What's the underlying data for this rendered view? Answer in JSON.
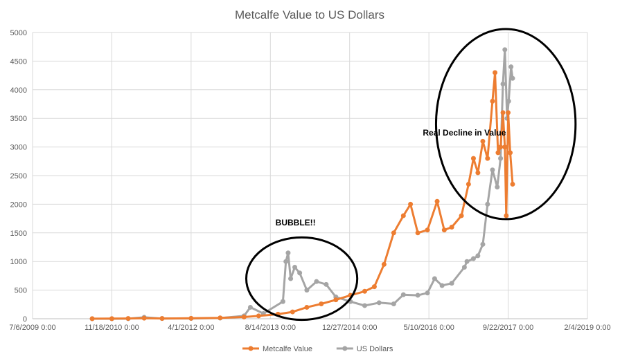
{
  "chart_data": {
    "type": "line",
    "title": "Metcalfe Value to US Dollars",
    "xlabel": "",
    "ylabel": "",
    "grid": true,
    "legend_placement": "bottom",
    "ylim": [
      0,
      5000
    ],
    "y_ticks": [
      0,
      500,
      1000,
      1500,
      2000,
      2500,
      3000,
      3500,
      4000,
      4500,
      5000
    ],
    "xlim": [
      "2009-07-06",
      "2019-02-04"
    ],
    "x_ticks": [
      {
        "date": "2009-07-06",
        "label": "7/6/2009 0:00"
      },
      {
        "date": "2010-11-18",
        "label": "11/18/2010 0:00"
      },
      {
        "date": "2012-04-01",
        "label": "4/1/2012 0:00"
      },
      {
        "date": "2013-08-14",
        "label": "8/14/2013 0:00"
      },
      {
        "date": "2014-12-27",
        "label": "12/27/2014 0:00"
      },
      {
        "date": "2016-05-10",
        "label": "5/10/2016 0:00"
      },
      {
        "date": "2017-09-22",
        "label": "9/22/2017 0:00"
      },
      {
        "date": "2019-02-04",
        "label": "2/4/2019 0:00"
      }
    ],
    "series": [
      {
        "name": "Metcalfe Value",
        "color": "#ed7d31",
        "points": [
          [
            "2010-07-17",
            1
          ],
          [
            "2010-11-18",
            2
          ],
          [
            "2011-03-01",
            5
          ],
          [
            "2011-06-10",
            10
          ],
          [
            "2011-10-01",
            5
          ],
          [
            "2012-04-01",
            8
          ],
          [
            "2012-10-01",
            15
          ],
          [
            "2013-03-01",
            30
          ],
          [
            "2013-06-01",
            50
          ],
          [
            "2013-10-01",
            80
          ],
          [
            "2014-01-01",
            120
          ],
          [
            "2014-04-01",
            200
          ],
          [
            "2014-07-01",
            260
          ],
          [
            "2014-10-01",
            330
          ],
          [
            "2015-01-01",
            410
          ],
          [
            "2015-04-01",
            480
          ],
          [
            "2015-06-01",
            560
          ],
          [
            "2015-08-01",
            950
          ],
          [
            "2015-10-01",
            1500
          ],
          [
            "2015-12-01",
            1800
          ],
          [
            "2016-01-15",
            2000
          ],
          [
            "2016-03-01",
            1500
          ],
          [
            "2016-05-01",
            1550
          ],
          [
            "2016-07-01",
            2050
          ],
          [
            "2016-08-15",
            1550
          ],
          [
            "2016-10-01",
            1600
          ],
          [
            "2016-12-01",
            1800
          ],
          [
            "2017-01-15",
            2350
          ],
          [
            "2017-02-15",
            2800
          ],
          [
            "2017-03-15",
            2550
          ],
          [
            "2017-04-15",
            3100
          ],
          [
            "2017-05-15",
            2800
          ],
          [
            "2017-06-15",
            3800
          ],
          [
            "2017-07-01",
            4300
          ],
          [
            "2017-07-20",
            2900
          ],
          [
            "2017-08-05",
            3000
          ],
          [
            "2017-08-20",
            3600
          ],
          [
            "2017-09-01",
            3000
          ],
          [
            "2017-09-10",
            1800
          ],
          [
            "2017-09-22",
            3600
          ],
          [
            "2017-10-05",
            2900
          ],
          [
            "2017-10-20",
            2350
          ]
        ]
      },
      {
        "name": "US Dollars",
        "color": "#a5a5a5",
        "points": [
          [
            "2010-07-17",
            0.1
          ],
          [
            "2010-11-18",
            0.3
          ],
          [
            "2011-03-01",
            1
          ],
          [
            "2011-06-10",
            25
          ],
          [
            "2011-10-01",
            4
          ],
          [
            "2012-04-01",
            5
          ],
          [
            "2012-10-01",
            12
          ],
          [
            "2013-03-01",
            50
          ],
          [
            "2013-04-10",
            200
          ],
          [
            "2013-07-01",
            90
          ],
          [
            "2013-11-01",
            300
          ],
          [
            "2013-11-20",
            1000
          ],
          [
            "2013-12-04",
            1150
          ],
          [
            "2013-12-20",
            700
          ],
          [
            "2014-01-15",
            900
          ],
          [
            "2014-02-15",
            800
          ],
          [
            "2014-04-01",
            500
          ],
          [
            "2014-06-01",
            650
          ],
          [
            "2014-08-01",
            600
          ],
          [
            "2014-10-01",
            380
          ],
          [
            "2015-01-01",
            300
          ],
          [
            "2015-04-01",
            230
          ],
          [
            "2015-07-01",
            280
          ],
          [
            "2015-10-01",
            260
          ],
          [
            "2015-12-01",
            420
          ],
          [
            "2016-03-01",
            410
          ],
          [
            "2016-05-01",
            450
          ],
          [
            "2016-06-15",
            700
          ],
          [
            "2016-08-01",
            580
          ],
          [
            "2016-10-01",
            620
          ],
          [
            "2016-12-20",
            900
          ],
          [
            "2017-01-05",
            1000
          ],
          [
            "2017-02-15",
            1050
          ],
          [
            "2017-03-15",
            1100
          ],
          [
            "2017-04-15",
            1300
          ],
          [
            "2017-05-15",
            2000
          ],
          [
            "2017-06-15",
            2600
          ],
          [
            "2017-07-15",
            2300
          ],
          [
            "2017-08-05",
            2800
          ],
          [
            "2017-08-20",
            4100
          ],
          [
            "2017-09-01",
            4700
          ],
          [
            "2017-09-15",
            3500
          ],
          [
            "2017-09-25",
            3800
          ],
          [
            "2017-10-10",
            4400
          ],
          [
            "2017-10-20",
            4200
          ]
        ]
      }
    ],
    "annotations": [
      {
        "text": "BUBBLE!!",
        "x": "2014-01-20",
        "y": 1630
      },
      {
        "text": "Real Decline in Value",
        "x": "2016-12-20",
        "y": 3200
      }
    ],
    "highlight_ellipses": [
      {
        "cx": "2014-02-28",
        "cy": 700,
        "rx_days": 350,
        "ry": 720
      },
      {
        "cx": "2017-09-07",
        "cy": 3400,
        "rx_days": 440,
        "ry": 1660
      }
    ]
  }
}
